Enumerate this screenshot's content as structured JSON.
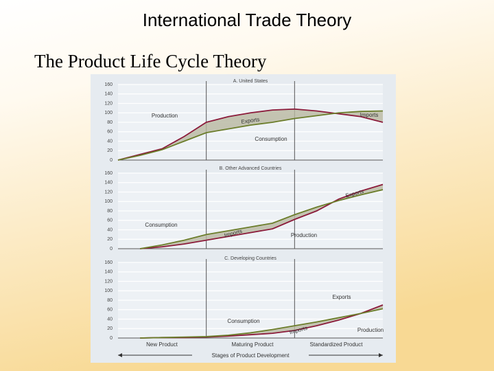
{
  "slide": {
    "title": "International Trade Theory",
    "subtitle": "The Product Life Cycle Theory"
  },
  "chart_data": [
    {
      "type": "line",
      "title": "A. United States",
      "x": [
        0,
        1,
        2,
        3,
        4,
        5,
        6,
        7,
        8,
        9,
        10,
        11,
        12
      ],
      "xlim": [
        0,
        12
      ],
      "ylim": [
        0,
        160
      ],
      "yticks": [
        0,
        20,
        40,
        60,
        80,
        100,
        120,
        140,
        160
      ],
      "grid": true,
      "stage_dividers": [
        4,
        8
      ],
      "series": [
        {
          "name": "Production",
          "color": "#8b1a3a",
          "values": [
            0,
            12,
            24,
            50,
            80,
            92,
            100,
            106,
            108,
            104,
            98,
            92,
            80
          ]
        },
        {
          "name": "Consumption",
          "color": "#6b7d2a",
          "values": [
            0,
            10,
            22,
            40,
            58,
            66,
            74,
            80,
            88,
            94,
            100,
            103,
            104
          ]
        }
      ],
      "annotations": [
        "Production",
        "Exports",
        "Consumption",
        "Imports"
      ]
    },
    {
      "type": "line",
      "title": "B. Other Advanced Countries",
      "x": [
        0,
        1,
        2,
        3,
        4,
        5,
        6,
        7,
        8,
        9,
        10,
        11,
        12
      ],
      "xlim": [
        0,
        12
      ],
      "ylim": [
        0,
        160
      ],
      "yticks": [
        0,
        20,
        40,
        60,
        80,
        100,
        120,
        140,
        160
      ],
      "grid": true,
      "stage_dividers": [
        4,
        8
      ],
      "series": [
        {
          "name": "Production",
          "color": "#8b1a3a",
          "values": [
            null,
            0,
            4,
            10,
            18,
            26,
            34,
            42,
            62,
            80,
            105,
            122,
            136
          ]
        },
        {
          "name": "Consumption",
          "color": "#6b7d2a",
          "values": [
            null,
            0,
            8,
            18,
            30,
            38,
            46,
            54,
            72,
            88,
            102,
            114,
            125
          ]
        }
      ],
      "annotations": [
        "Consumption",
        "Imports",
        "Production",
        "Exports"
      ]
    },
    {
      "type": "line",
      "title": "C. Developing Countries",
      "x": [
        0,
        1,
        2,
        3,
        4,
        5,
        6,
        7,
        8,
        9,
        10,
        11,
        12
      ],
      "xlim": [
        0,
        12
      ],
      "ylim": [
        0,
        160
      ],
      "yticks": [
        0,
        20,
        40,
        60,
        80,
        100,
        120,
        140,
        160
      ],
      "grid": true,
      "stage_dividers": [
        4,
        8
      ],
      "series": [
        {
          "name": "Production",
          "color": "#8b1a3a",
          "values": [
            null,
            0,
            1,
            1,
            2,
            4,
            7,
            10,
            16,
            26,
            38,
            52,
            70
          ]
        },
        {
          "name": "Consumption",
          "color": "#6b7d2a",
          "values": [
            null,
            0,
            1,
            2,
            3,
            6,
            11,
            18,
            26,
            34,
            43,
            52,
            62
          ]
        }
      ],
      "annotations": [
        "Exports",
        "Consumption",
        "Imports",
        "Production"
      ],
      "stage_labels": [
        "New Product",
        "Maturing Product",
        "Standardized Product"
      ],
      "xlabel": "Stages of Product Development"
    }
  ]
}
